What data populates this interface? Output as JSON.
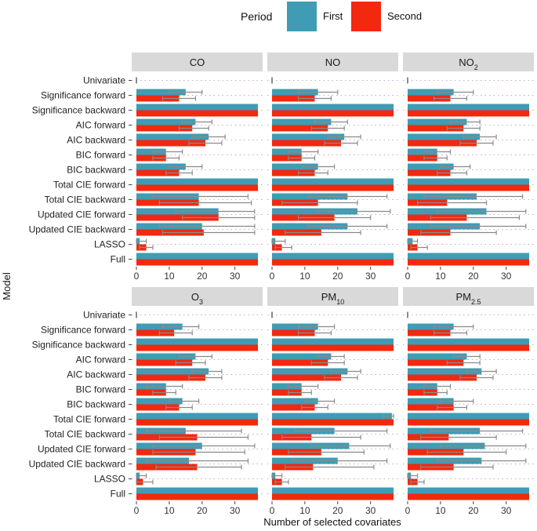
{
  "chart_data": {
    "type": "bar",
    "orientation": "horizontal",
    "xlabel": "Number of selected covariates",
    "ylabel": "Model",
    "xlim": [
      0,
      37
    ],
    "xticks": [
      0,
      10,
      20,
      30
    ],
    "legend": {
      "title": "Period",
      "position": "top",
      "entries": [
        {
          "name": "First",
          "color": "#3f9cb4"
        },
        {
          "name": "Second",
          "color": "#f2280f"
        }
      ]
    },
    "categories": [
      "Univariate",
      "Significance forward",
      "Significance backward",
      "AIC forward",
      "AIC backward",
      "BIC forward",
      "BIC backward",
      "Total CIE forward",
      "Total CIE backward",
      "Updated CIE forward",
      "Updated CIE backward",
      "LASSO",
      "Full"
    ],
    "panels": [
      {
        "title": "CO",
        "title_main": "CO",
        "title_sub": "",
        "series": [
          {
            "name": "First",
            "values": [
              0,
              15,
              37,
              18,
              22,
              9,
              15,
              37,
              19,
              25,
              20,
              1,
              37
            ],
            "err_low": [
              0,
              10,
              37,
              14,
              17,
              5,
              10,
              37,
              5,
              12,
              7,
              0,
              37
            ],
            "err_high": [
              0,
              20,
              37,
              23,
              27,
              14,
              20,
              37,
              34,
              36,
              36,
              3,
              37
            ]
          },
          {
            "name": "Second",
            "values": [
              0,
              13,
              37,
              17,
              21,
              9,
              13,
              37,
              19,
              25,
              20.5,
              3,
              37
            ],
            "err_low": [
              0,
              8,
              37,
              13,
              16,
              5,
              9,
              37,
              7,
              14,
              8,
              1,
              37
            ],
            "err_high": [
              0,
              18,
              37,
              22,
              26,
              13,
              17,
              37,
              35,
              36,
              36,
              5,
              37
            ]
          }
        ]
      },
      {
        "title": "NO",
        "title_main": "NO",
        "title_sub": "",
        "series": [
          {
            "name": "First",
            "values": [
              0,
              14,
              37,
              18,
              22,
              9,
              14,
              37,
              23,
              26,
              23,
              1,
              37
            ],
            "err_low": [
              0,
              8,
              37,
              13,
              17,
              5,
              9,
              37,
              11,
              14,
              11,
              0,
              37
            ],
            "err_high": [
              0,
              20,
              37,
              23,
              27,
              14,
              19,
              37,
              35,
              36,
              35,
              4,
              37
            ]
          },
          {
            "name": "Second",
            "values": [
              0,
              13,
              37,
              17,
              21,
              9,
              13,
              37,
              14,
              19,
              15,
              3,
              37
            ],
            "err_low": [
              0,
              8,
              37,
              12,
              16,
              5,
              8,
              37,
              3,
              8,
              4,
              1,
              37
            ],
            "err_high": [
              0,
              18,
              37,
              22,
              26,
              13,
              17,
              37,
              26,
              30,
              27,
              6,
              37
            ]
          }
        ]
      },
      {
        "title": "NO2",
        "title_main": "NO",
        "title_sub": "2",
        "series": [
          {
            "name": "First",
            "values": [
              0,
              14,
              37,
              18,
              22,
              9,
              14,
              37,
              21,
              24,
              22,
              1.5,
              37
            ],
            "err_low": [
              0,
              9,
              37,
              13,
              17,
              5,
              10,
              37,
              5,
              9,
              7,
              0,
              37
            ],
            "err_high": [
              0,
              20,
              37,
              22,
              27,
              13,
              19,
              37,
              35,
              36,
              36,
              3,
              37
            ]
          },
          {
            "name": "Second",
            "values": [
              0,
              13,
              37,
              17,
              21,
              9,
              13,
              37,
              12,
              18,
              13,
              3,
              37
            ],
            "err_low": [
              0,
              8,
              37,
              12,
              16,
              5,
              9,
              37,
              3,
              7,
              4,
              1,
              37
            ],
            "err_high": [
              0,
              18,
              37,
              22,
              26,
              12,
              18,
              37,
              24,
              34,
              27,
              6,
              37
            ]
          }
        ]
      },
      {
        "title": "O3",
        "title_main": "O",
        "title_sub": "3",
        "series": [
          {
            "name": "First",
            "values": [
              0,
              14,
              37,
              18,
              22,
              9,
              14,
              37,
              15,
              20,
              16,
              1,
              37
            ],
            "err_low": [
              0,
              8,
              37,
              13,
              17,
              3,
              10,
              37,
              3,
              5,
              3,
              0,
              37
            ],
            "err_high": [
              0,
              19,
              37,
              23,
              26,
              14,
              19,
              37,
              32,
              36,
              34,
              3,
              37
            ]
          },
          {
            "name": "Second",
            "values": [
              0,
              11.5,
              37,
              17,
              21,
              9,
              13,
              37,
              18.5,
              18,
              18.5,
              2,
              37
            ],
            "err_low": [
              0,
              7,
              37,
              12,
              16,
              5,
              9,
              37,
              7,
              5,
              6,
              0,
              37
            ],
            "err_high": [
              0,
              17,
              37,
              21,
              26,
              12,
              17,
              37,
              34,
              33,
              32,
              5,
              37
            ]
          }
        ]
      },
      {
        "title": "PM10",
        "title_main": "PM",
        "title_sub": "10",
        "series": [
          {
            "name": "First",
            "values": [
              0,
              14,
              37,
              18,
              23,
              9,
              14,
              36.5,
              19,
              23.5,
              20,
              1,
              37
            ],
            "err_low": [
              0,
              8,
              37,
              14,
              18,
              5,
              10,
              34,
              7,
              12,
              6,
              0,
              37
            ],
            "err_high": [
              0,
              19,
              37,
              22,
              27,
              14,
              19,
              37,
              35,
              36,
              35,
              3,
              37
            ]
          },
          {
            "name": "Second",
            "values": [
              0,
              13,
              37,
              17,
              21,
              9,
              13,
              37,
              12,
              15,
              12.5,
              3,
              37
            ],
            "err_low": [
              0,
              8,
              37,
              12,
              16,
              5,
              9,
              37,
              3,
              5,
              4,
              1,
              37
            ],
            "err_high": [
              0,
              18,
              37,
              22,
              26,
              12,
              17,
              37,
              27,
              28,
              31,
              5,
              37
            ]
          }
        ]
      },
      {
        "title": "PM2.5",
        "title_main": "PM",
        "title_sub": "2.5",
        "series": [
          {
            "name": "First",
            "values": [
              0,
              14,
              37,
              18,
              22.5,
              9,
              14,
              37,
              22,
              23.5,
              22.5,
              1,
              37
            ],
            "err_low": [
              0,
              8,
              37,
              14,
              18,
              5,
              10,
              37,
              7,
              10,
              9,
              0,
              37
            ],
            "err_high": [
              0,
              20,
              37,
              22,
              27,
              13,
              20,
              37,
              35,
              36,
              36,
              3,
              37
            ]
          },
          {
            "name": "Second",
            "values": [
              0,
              13,
              37,
              17,
              21,
              9,
              14,
              37,
              12.5,
              17,
              14,
              3,
              37
            ],
            "err_low": [
              0,
              8,
              37,
              12,
              16,
              5,
              9,
              37,
              4,
              6,
              4,
              1,
              37
            ],
            "err_high": [
              0,
              18,
              37,
              22,
              26,
              12,
              18,
              37,
              27,
              30,
              26,
              5,
              37
            ]
          }
        ]
      }
    ]
  }
}
